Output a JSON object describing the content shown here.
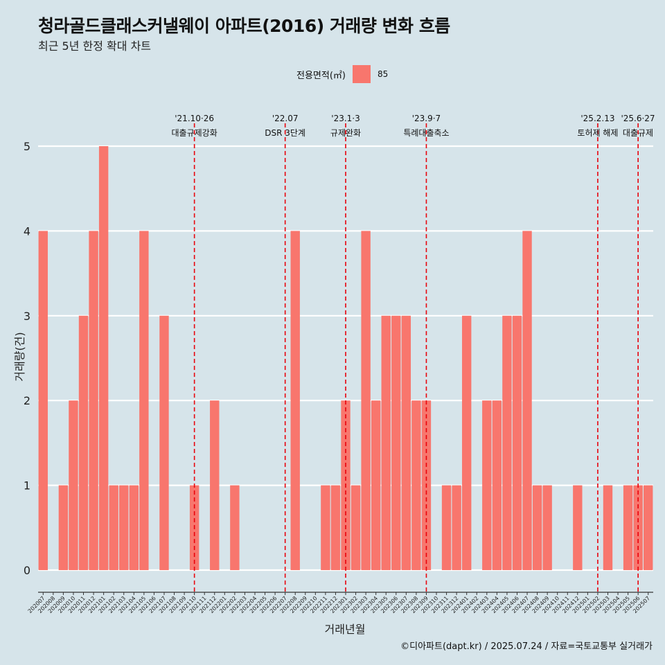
{
  "chart_data": {
    "type": "bar",
    "title": "청라골드클래스커낼웨이 아파트(2016) 거래량 변화 흐름",
    "subtitle": "최근 5년 한정 확대 차트",
    "xlabel": "거래년월",
    "ylabel": "거래량(건)",
    "ylim": [
      0,
      5
    ],
    "yticks": [
      0,
      1,
      2,
      3,
      4,
      5
    ],
    "legend": {
      "title": "전용면적(㎡)",
      "placement": "top",
      "entries": [
        "85"
      ]
    },
    "grid": true,
    "categories": [
      "202007",
      "202008",
      "202009",
      "202010",
      "202011",
      "202012",
      "202101",
      "202102",
      "202103",
      "202104",
      "202105",
      "202106",
      "202107",
      "202108",
      "202109",
      "202110",
      "202111",
      "202112",
      "202201",
      "202202",
      "202203",
      "202204",
      "202205",
      "202206",
      "202207",
      "202208",
      "202209",
      "202210",
      "202211",
      "202212",
      "202301",
      "202302",
      "202303",
      "202304",
      "202305",
      "202306",
      "202307",
      "202308",
      "202309",
      "202310",
      "202311",
      "202312",
      "202401",
      "202402",
      "202403",
      "202404",
      "202405",
      "202406",
      "202407",
      "202408",
      "202409",
      "202410",
      "202411",
      "202412",
      "202501",
      "202502",
      "202503",
      "202504",
      "202505",
      "202506",
      "202507"
    ],
    "series": [
      {
        "name": "85",
        "color": "#f8766d",
        "values": [
          4,
          0,
          1,
          2,
          3,
          4,
          5,
          1,
          1,
          1,
          4,
          0,
          3,
          0,
          0,
          1,
          0,
          2,
          0,
          1,
          0,
          0,
          0,
          0,
          0,
          4,
          0,
          0,
          1,
          1,
          2,
          1,
          4,
          2,
          3,
          3,
          3,
          2,
          2,
          0,
          1,
          1,
          3,
          0,
          2,
          2,
          3,
          3,
          4,
          1,
          1,
          0,
          0,
          1,
          0,
          0,
          1,
          0,
          1,
          1,
          1
        ]
      }
    ],
    "annotations": [
      {
        "x": "202110",
        "line1": "'21.10·26",
        "line2": "대출규제강화"
      },
      {
        "x": "202207",
        "line1": "'22.07",
        "line2": "DSR 3단계"
      },
      {
        "x": "202301",
        "line1": "'23.1·3",
        "line2": "규제완화"
      },
      {
        "x": "202309",
        "line1": "'23.9·7",
        "line2": "특례대출축소"
      },
      {
        "x": "202502",
        "line1": "'25.2.13",
        "line2": "토허제 해제"
      },
      {
        "x": "202506",
        "line1": "'25.6·27",
        "line2": "대출규제"
      }
    ],
    "annotation_color": "#e8000b"
  },
  "caption": "©디아파트(dapt.kr) / 2025.07.24 / 자료=국토교통부 실거래가"
}
